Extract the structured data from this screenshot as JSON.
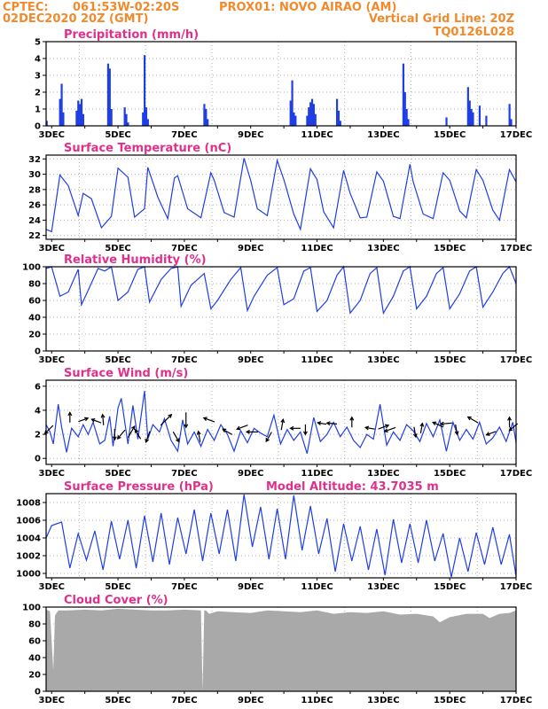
{
  "header": {
    "source": "CPTEC:",
    "location": "061:53W-02:20S",
    "station": "PROX01: NOVO AIRAO (AM)",
    "date": "02DEC2020 20Z (GMT)",
    "grid_note": "Vertical Grid Line: 20Z",
    "model": "TQ0126L028"
  },
  "colors": {
    "header": "#f08a2c",
    "title": "#e0308c",
    "line": "#1f3ee6",
    "cloud": "#a9a9a9",
    "arrow": "#000000"
  },
  "chart_data": [
    {
      "id": "precip",
      "type": "bar",
      "title": "Precipitation (mm/h)",
      "ylim": [
        0,
        5
      ],
      "yticks": [
        0,
        1,
        2,
        3,
        4,
        5
      ],
      "x_ticks": [
        "3DEC",
        "5DEC",
        "7DEC",
        "9DEC",
        "11DEC",
        "13DEC",
        "15DEC",
        "17DEC"
      ],
      "xlim": [
        2.833,
        17.0
      ],
      "x": [
        2.85,
        3.25,
        3.3,
        3.35,
        3.75,
        3.8,
        3.85,
        3.9,
        3.95,
        4.7,
        4.75,
        4.8,
        5.2,
        5.25,
        5.3,
        5.75,
        5.8,
        5.85,
        5.9,
        7.6,
        7.65,
        7.7,
        10.2,
        10.25,
        10.3,
        10.35,
        10.7,
        10.75,
        10.8,
        10.85,
        10.9,
        10.95,
        11.6,
        11.65,
        11.7,
        13.6,
        13.65,
        13.7,
        13.75,
        14.9,
        15.55,
        15.6,
        15.65,
        15.7,
        15.9,
        16.1,
        16.8,
        16.85
      ],
      "values": [
        0.3,
        1.6,
        2.5,
        0.8,
        0.9,
        1.5,
        1.3,
        1.6,
        0.7,
        3.7,
        3.4,
        1.0,
        1.1,
        0.7,
        0.2,
        0.8,
        4.2,
        1.1,
        0.4,
        1.3,
        1.0,
        0.4,
        1.5,
        2.7,
        0.8,
        0.6,
        0.6,
        1.1,
        1.4,
        1.6,
        1.3,
        0.7,
        1.6,
        0.9,
        0.3,
        3.7,
        2.0,
        1.0,
        0.4,
        0.5,
        2.3,
        1.5,
        1.0,
        0.8,
        1.2,
        0.6,
        1.3,
        0.4
      ]
    },
    {
      "id": "temp",
      "type": "line",
      "title": "Surface Temperature (nC)",
      "ylim": [
        21.5,
        32.5
      ],
      "yticks": [
        22,
        24,
        26,
        28,
        30,
        32
      ],
      "x_ticks": [
        "3DEC",
        "5DEC",
        "7DEC",
        "9DEC",
        "11DEC",
        "13DEC",
        "15DEC",
        "17DEC"
      ],
      "xlim": [
        2.833,
        17.0
      ],
      "x": [
        2.833,
        3.0,
        3.25,
        3.5,
        3.8,
        3.95,
        4.2,
        4.5,
        4.8,
        5.0,
        5.3,
        5.5,
        5.8,
        5.9,
        6.2,
        6.5,
        6.7,
        6.8,
        7.1,
        7.5,
        7.8,
        7.9,
        8.2,
        8.5,
        8.8,
        9.0,
        9.2,
        9.5,
        9.8,
        10.0,
        10.3,
        10.5,
        10.8,
        11.0,
        11.2,
        11.5,
        11.8,
        12.0,
        12.3,
        12.5,
        12.8,
        13.0,
        13.3,
        13.5,
        13.8,
        13.9,
        14.2,
        14.5,
        14.8,
        15.0,
        15.3,
        15.5,
        15.8,
        16.0,
        16.3,
        16.5,
        16.8,
        17.0
      ],
      "values": [
        22.8,
        22.5,
        29.9,
        28.5,
        24.6,
        27.5,
        26.8,
        23.0,
        24.5,
        30.8,
        29.6,
        24.4,
        25.5,
        30.9,
        27.0,
        24.2,
        29.5,
        29.8,
        25.5,
        24.3,
        30.2,
        29.2,
        25.0,
        24.4,
        32.1,
        29.2,
        25.5,
        24.6,
        31.8,
        29.3,
        24.8,
        22.8,
        30.7,
        29.3,
        25.1,
        23.0,
        30.5,
        27.5,
        24.3,
        24.4,
        30.3,
        29.1,
        24.5,
        24.2,
        31.3,
        29.0,
        24.8,
        24.2,
        30.2,
        29.2,
        25.2,
        24.3,
        30.6,
        29.2,
        25.3,
        24.0,
        30.6,
        29.0
      ]
    },
    {
      "id": "rh",
      "type": "line",
      "title": "Relative Humidity (%)",
      "ylim": [
        0,
        100
      ],
      "yticks": [
        0,
        20,
        40,
        60,
        80,
        100
      ],
      "x_ticks": [
        "3DEC",
        "5DEC",
        "7DEC",
        "9DEC",
        "11DEC",
        "13DEC",
        "15DEC",
        "17DEC"
      ],
      "xlim": [
        2.833,
        17.0
      ],
      "x": [
        2.833,
        3.0,
        3.25,
        3.5,
        3.8,
        3.9,
        4.1,
        4.4,
        4.6,
        4.8,
        5.0,
        5.3,
        5.6,
        5.8,
        5.95,
        6.3,
        6.6,
        6.8,
        6.9,
        7.2,
        7.6,
        7.8,
        8.0,
        8.4,
        8.7,
        8.9,
        9.1,
        9.5,
        9.8,
        10.0,
        10.3,
        10.6,
        10.8,
        11.0,
        11.3,
        11.6,
        11.8,
        12.0,
        12.3,
        12.6,
        12.8,
        13.0,
        13.3,
        13.6,
        13.8,
        14.0,
        14.3,
        14.6,
        14.8,
        15.0,
        15.3,
        15.6,
        15.8,
        16.0,
        16.3,
        16.6,
        16.8,
        17.0
      ],
      "values": [
        98,
        100,
        65,
        70,
        97,
        55,
        72,
        98,
        95,
        100,
        60,
        70,
        97,
        100,
        58,
        85,
        98,
        100,
        53,
        78,
        92,
        50,
        60,
        85,
        99,
        48,
        65,
        90,
        99,
        55,
        62,
        95,
        99,
        47,
        60,
        90,
        100,
        45,
        60,
        92,
        99,
        45,
        65,
        95,
        100,
        50,
        65,
        92,
        99,
        50,
        68,
        95,
        100,
        52,
        70,
        92,
        100,
        80
      ]
    },
    {
      "id": "wind",
      "type": "line",
      "title": "Surface Wind (m/s)",
      "ylim": [
        -0.5,
        6.5
      ],
      "yticks": [
        0,
        2,
        4,
        6
      ],
      "x_ticks": [
        "3DEC",
        "5DEC",
        "7DEC",
        "9DEC",
        "11DEC",
        "13DEC",
        "15DEC",
        "17DEC"
      ],
      "xlim": [
        2.833,
        17.0
      ],
      "x": [
        2.833,
        2.95,
        3.05,
        3.2,
        3.3,
        3.45,
        3.6,
        3.8,
        3.95,
        4.1,
        4.25,
        4.45,
        4.6,
        4.75,
        4.85,
        5.0,
        5.1,
        5.3,
        5.45,
        5.6,
        5.8,
        5.9,
        6.05,
        6.25,
        6.4,
        6.6,
        6.8,
        6.95,
        7.1,
        7.3,
        7.5,
        7.7,
        7.9,
        8.1,
        8.3,
        8.5,
        8.7,
        8.9,
        9.1,
        9.3,
        9.5,
        9.7,
        9.9,
        10.1,
        10.3,
        10.5,
        10.7,
        10.9,
        11.1,
        11.3,
        11.5,
        11.7,
        11.9,
        12.1,
        12.3,
        12.5,
        12.7,
        12.9,
        13.1,
        13.3,
        13.5,
        13.7,
        13.9,
        14.1,
        14.3,
        14.5,
        14.7,
        14.9,
        15.1,
        15.3,
        15.5,
        15.7,
        15.9,
        16.1,
        16.3,
        16.5,
        16.7,
        16.9,
        17.0
      ],
      "values": [
        2.8,
        2.2,
        1.2,
        4.5,
        2.6,
        0.5,
        2.5,
        1.8,
        2.8,
        2.0,
        3.0,
        1.2,
        1.5,
        3.5,
        1.0,
        4.2,
        5.0,
        1.2,
        4.4,
        1.6,
        5.6,
        1.6,
        2.8,
        2.2,
        3.3,
        1.5,
        0.6,
        3.2,
        1.2,
        2.2,
        1.0,
        2.4,
        1.5,
        2.8,
        2.0,
        0.6,
        2.3,
        1.3,
        2.5,
        2.1,
        1.8,
        3.6,
        1.2,
        2.4,
        1.5,
        2.2,
        0.4,
        3.4,
        1.4,
        2.0,
        3.0,
        1.8,
        2.6,
        1.5,
        0.9,
        2.0,
        1.6,
        4.5,
        1.1,
        2.2,
        1.5,
        2.8,
        2.3,
        1.4,
        2.9,
        1.8,
        3.2,
        0.6,
        3.0,
        1.5,
        2.4,
        1.6,
        3.0,
        1.2,
        1.7,
        2.6,
        1.4,
        3.0,
        1.3
      ],
      "arrows": [
        {
          "x": 2.92,
          "y": 2.4,
          "dir_deg": 225,
          "speed": 2.0
        },
        {
          "x": 3.55,
          "y": 3.4,
          "dir_deg": 90,
          "speed": 1.6
        },
        {
          "x": 3.95,
          "y": 3.2,
          "dir_deg": 20,
          "speed": 1.6
        },
        {
          "x": 4.35,
          "y": 3.1,
          "dir_deg": 160,
          "speed": 1.6
        },
        {
          "x": 4.55,
          "y": 3.2,
          "dir_deg": 95,
          "speed": 1.8
        },
        {
          "x": 4.9,
          "y": 2.0,
          "dir_deg": 270,
          "speed": 1.8
        },
        {
          "x": 5.1,
          "y": 2.0,
          "dir_deg": 230,
          "speed": 2.0
        },
        {
          "x": 5.4,
          "y": 2.2,
          "dir_deg": 60,
          "speed": 2.4
        },
        {
          "x": 5.6,
          "y": 2.0,
          "dir_deg": 120,
          "speed": 1.8
        },
        {
          "x": 5.9,
          "y": 1.8,
          "dir_deg": 250,
          "speed": 2.0
        },
        {
          "x": 6.45,
          "y": 3.2,
          "dir_deg": 45,
          "speed": 3.0
        },
        {
          "x": 6.75,
          "y": 1.8,
          "dir_deg": 300,
          "speed": 2.0
        },
        {
          "x": 7.05,
          "y": 3.2,
          "dir_deg": 270,
          "speed": 3.0
        },
        {
          "x": 7.45,
          "y": 1.8,
          "dir_deg": 100,
          "speed": 1.8
        },
        {
          "x": 7.75,
          "y": 3.2,
          "dir_deg": 160,
          "speed": 2.0
        },
        {
          "x": 8.3,
          "y": 2.2,
          "dir_deg": 150,
          "speed": 1.8
        },
        {
          "x": 8.75,
          "y": 2.6,
          "dir_deg": 200,
          "speed": 2.0
        },
        {
          "x": 9.05,
          "y": 2.2,
          "dir_deg": 180,
          "speed": 2.0
        },
        {
          "x": 9.55,
          "y": 1.8,
          "dir_deg": 240,
          "speed": 1.8
        },
        {
          "x": 9.95,
          "y": 2.8,
          "dir_deg": 80,
          "speed": 1.8
        },
        {
          "x": 10.35,
          "y": 2.5,
          "dir_deg": 180,
          "speed": 1.6
        },
        {
          "x": 10.65,
          "y": 2.4,
          "dir_deg": 270,
          "speed": 1.6
        },
        {
          "x": 11.15,
          "y": 2.9,
          "dir_deg": 170,
          "speed": 1.2
        },
        {
          "x": 11.45,
          "y": 2.9,
          "dir_deg": 175,
          "speed": 1.6
        },
        {
          "x": 12.05,
          "y": 3.0,
          "dir_deg": 90,
          "speed": 1.6
        },
        {
          "x": 12.6,
          "y": 2.5,
          "dir_deg": 170,
          "speed": 1.4
        },
        {
          "x": 13.0,
          "y": 2.6,
          "dir_deg": 20,
          "speed": 1.8
        },
        {
          "x": 13.2,
          "y": 2.4,
          "dir_deg": 200,
          "speed": 2.0
        },
        {
          "x": 13.95,
          "y": 2.2,
          "dir_deg": 280,
          "speed": 1.6
        },
        {
          "x": 14.15,
          "y": 2.5,
          "dir_deg": 80,
          "speed": 1.6
        },
        {
          "x": 14.65,
          "y": 2.8,
          "dir_deg": 155,
          "speed": 2.0
        },
        {
          "x": 14.9,
          "y": 2.9,
          "dir_deg": 185,
          "speed": 2.0
        },
        {
          "x": 15.2,
          "y": 2.4,
          "dir_deg": 280,
          "speed": 1.6
        },
        {
          "x": 15.7,
          "y": 3.2,
          "dir_deg": 150,
          "speed": 2.0
        },
        {
          "x": 16.25,
          "y": 2.1,
          "dir_deg": 200,
          "speed": 1.6
        },
        {
          "x": 16.8,
          "y": 3.0,
          "dir_deg": 90,
          "speed": 1.6
        },
        {
          "x": 16.92,
          "y": 2.6,
          "dir_deg": 220,
          "speed": 1.8
        }
      ]
    },
    {
      "id": "pressure",
      "type": "line",
      "title": "Surface Pressure (hPa)",
      "subtitle": "Model Altitude: 43.7035 m",
      "ylim": [
        999.5,
        1009
      ],
      "yticks": [
        1000,
        1002,
        1004,
        1006,
        1008
      ],
      "x_ticks": [
        "3DEC",
        "5DEC",
        "7DEC",
        "9DEC",
        "11DEC",
        "13DEC",
        "15DEC",
        "17DEC"
      ],
      "xlim": [
        2.833,
        17.0
      ],
      "x": [
        2.833,
        3.0,
        3.3,
        3.55,
        3.8,
        4.05,
        4.3,
        4.55,
        4.8,
        5.05,
        5.3,
        5.55,
        5.8,
        6.05,
        6.3,
        6.55,
        6.8,
        7.05,
        7.3,
        7.55,
        7.8,
        8.05,
        8.3,
        8.55,
        8.8,
        9.05,
        9.3,
        9.55,
        9.8,
        10.05,
        10.3,
        10.55,
        10.8,
        11.05,
        11.3,
        11.55,
        11.8,
        12.05,
        12.3,
        12.55,
        12.8,
        13.05,
        13.3,
        13.55,
        13.8,
        14.05,
        14.3,
        14.55,
        14.8,
        15.05,
        15.3,
        15.55,
        15.8,
        16.05,
        16.3,
        16.55,
        16.8,
        17.0
      ],
      "values": [
        1004,
        1005.4,
        1005.8,
        1000.6,
        1004.5,
        1001.5,
        1004.8,
        1000.4,
        1005.9,
        1001.6,
        1006.0,
        1000.6,
        1006.5,
        1001.3,
        1006.8,
        1001.0,
        1006.3,
        1002.2,
        1007.2,
        1001.4,
        1006.8,
        1002.2,
        1007.2,
        1001.4,
        1008.9,
        1003.0,
        1007.5,
        1001.6,
        1007.3,
        1001.6,
        1008.8,
        1002.6,
        1007.6,
        1002.2,
        1006.2,
        1000.2,
        1005.6,
        1001.4,
        1005.3,
        1000.4,
        1005.0,
        999.8,
        1006.1,
        1001.2,
        1005.6,
        1001.2,
        1006.0,
        1001.4,
        1004.5,
        999.6,
        1004.0,
        1000.2,
        1004.6,
        1001.0,
        1005.2,
        1001.0,
        1004.4,
        999.7
      ]
    },
    {
      "id": "cloud",
      "type": "area",
      "title": "Cloud Cover (%)",
      "ylim": [
        0,
        100
      ],
      "yticks": [
        0,
        20,
        40,
        60,
        80,
        100
      ],
      "x_ticks": [
        "3DEC",
        "5DEC",
        "7DEC",
        "9DEC",
        "11DEC",
        "13DEC",
        "15DEC",
        "17DEC"
      ],
      "xlim": [
        2.833,
        17.0
      ],
      "x": [
        2.833,
        2.95,
        3.0,
        3.05,
        3.1,
        3.2,
        3.5,
        4.0,
        4.5,
        5.0,
        5.5,
        6.0,
        6.5,
        7.0,
        7.5,
        7.55,
        7.6,
        7.65,
        7.75,
        8.0,
        8.5,
        9.0,
        9.5,
        10.0,
        10.5,
        11.0,
        11.5,
        12.0,
        12.5,
        13.0,
        13.5,
        14.0,
        14.5,
        14.7,
        15.0,
        15.5,
        16.0,
        16.2,
        16.5,
        16.8,
        17.0
      ],
      "values": [
        97,
        95,
        60,
        25,
        90,
        96,
        96,
        97,
        96,
        98,
        97,
        96,
        96,
        97,
        96,
        0,
        96,
        96,
        92,
        95,
        94,
        93,
        96,
        95,
        94,
        96,
        92,
        94,
        93,
        95,
        91,
        92,
        89,
        82,
        88,
        92,
        92,
        87,
        92,
        93,
        96
      ]
    }
  ]
}
